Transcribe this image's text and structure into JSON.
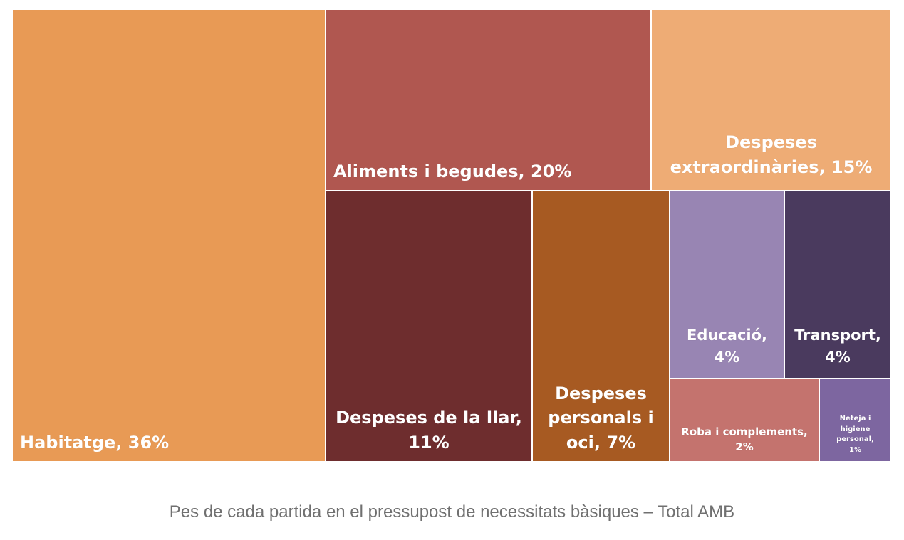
{
  "chart_data": {
    "type": "treemap",
    "title": "",
    "caption": "Pes de cada partida en el pressupost de necessitats bàsiques – Total AMB",
    "items": [
      {
        "key": "habitatge",
        "label": "Habitatge, 36%",
        "category": "Habitatge",
        "value": 36,
        "color": "#E89A55"
      },
      {
        "key": "aliments",
        "label": "Aliments i begudes, 20%",
        "category": "Aliments i begudes",
        "value": 20,
        "color": "#B05750"
      },
      {
        "key": "extraordinaries",
        "label": "Despeses\nextraordinàries, 15%",
        "category": "Despeses extraordinàries",
        "value": 15,
        "color": "#EEAC75"
      },
      {
        "key": "llar",
        "label": "Despeses de la llar,\n11%",
        "category": "Despeses de la llar",
        "value": 11,
        "color": "#6E2D2E"
      },
      {
        "key": "personals",
        "label": "Despeses\npersonals i\noci, 7%",
        "category": "Despeses personals i oci",
        "value": 7,
        "color": "#A75A22"
      },
      {
        "key": "educacio",
        "label": "Educació,\n4%",
        "category": "Educació",
        "value": 4,
        "color": "#9885B3"
      },
      {
        "key": "transport",
        "label": "Transport,\n4%",
        "category": "Transport",
        "value": 4,
        "color": "#4A3A5E"
      },
      {
        "key": "roba",
        "label": "Roba i complements,\n2%",
        "category": "Roba i complements",
        "value": 2,
        "color": "#C4736E"
      },
      {
        "key": "neteja",
        "label": "Neteja i\nhigiene\npersonal,\n1%",
        "category": "Neteja i higiene personal",
        "value": 1,
        "color": "#7D66A0"
      }
    ]
  }
}
